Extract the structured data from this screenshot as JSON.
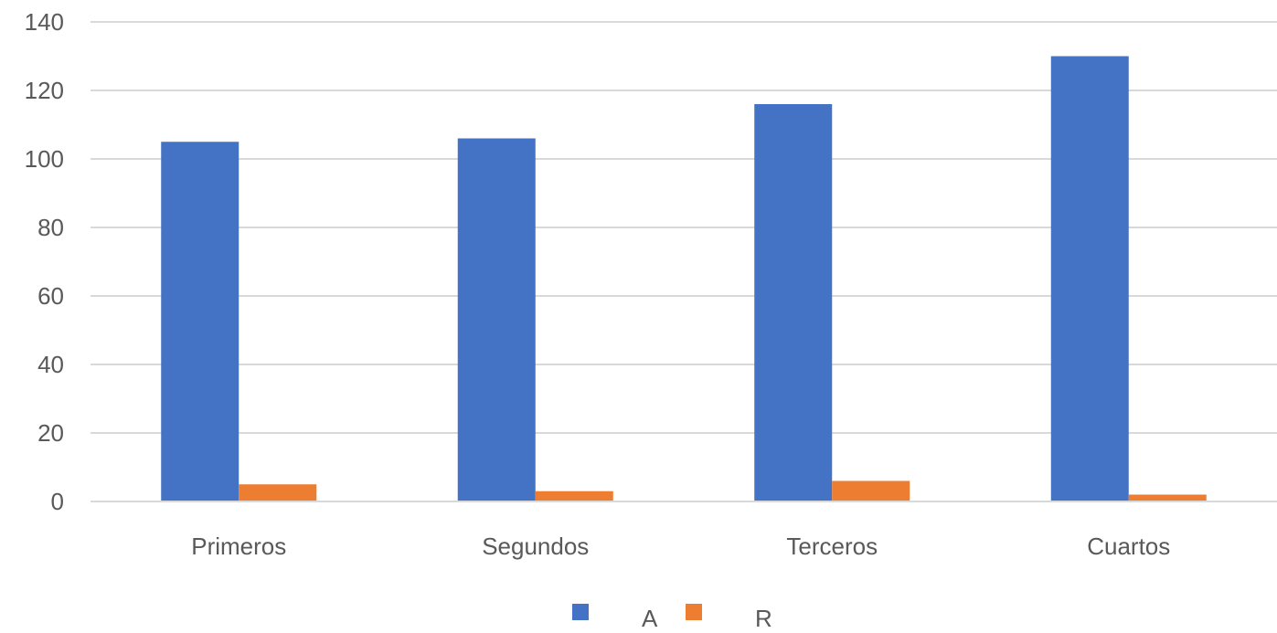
{
  "chart_data": {
    "type": "bar",
    "title": "",
    "xlabel": "",
    "ylabel": "",
    "categories": [
      "Primeros",
      "Segundos",
      "Terceros",
      "Cuartos"
    ],
    "series": [
      {
        "name": "A",
        "values": [
          105,
          106,
          116,
          130
        ],
        "color": "#4472c4"
      },
      {
        "name": "R",
        "values": [
          5,
          3,
          6,
          2
        ],
        "color": "#ed7d31"
      }
    ],
    "ylim": [
      0,
      140
    ],
    "yticks": [
      0,
      20,
      40,
      60,
      80,
      100,
      120,
      140
    ],
    "grid": true,
    "legend": "bottom-center"
  }
}
